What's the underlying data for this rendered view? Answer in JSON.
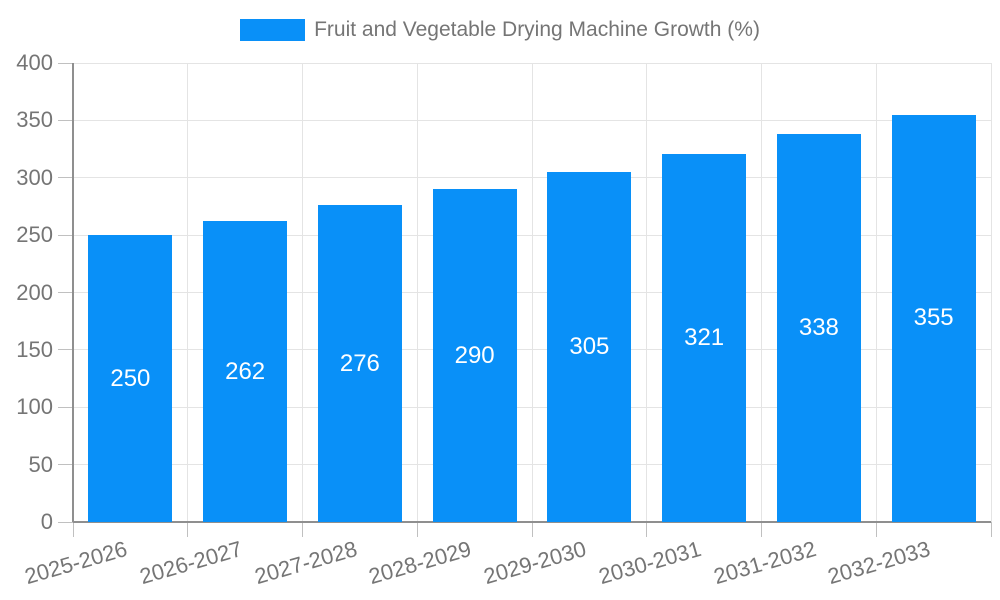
{
  "chart_data": {
    "type": "bar",
    "title": "Fruit and Vegetable Drying Machine Growth (%)",
    "legend_position": "top",
    "categories": [
      "2025-2026",
      "2026-2027",
      "2027-2028",
      "2028-2029",
      "2029-2030",
      "2030-2031",
      "2031-2032",
      "2032-2033"
    ],
    "series": [
      {
        "name": "Fruit and Vegetable Drying Machine Growth (%)",
        "values": [
          250,
          262,
          276,
          290,
          305,
          321,
          338,
          355
        ]
      }
    ],
    "bar_value_labels": [
      250,
      262,
      276,
      290,
      305,
      321,
      338,
      355
    ],
    "xlabel": "",
    "ylabel": "",
    "ylim": [
      0,
      400
    ],
    "yticks": [
      0,
      50,
      100,
      150,
      200,
      250,
      300,
      350,
      400
    ],
    "grid": "on",
    "x_tick_label_rotation_deg": -16,
    "colors": {
      "bar": "#0990f8",
      "grid_line": "#e4e4e4",
      "axis_line": "#8f8f8f",
      "tick_mark": "#c0c0c0",
      "axis_text": "#757575",
      "bar_value_text": "#ffffff"
    }
  }
}
